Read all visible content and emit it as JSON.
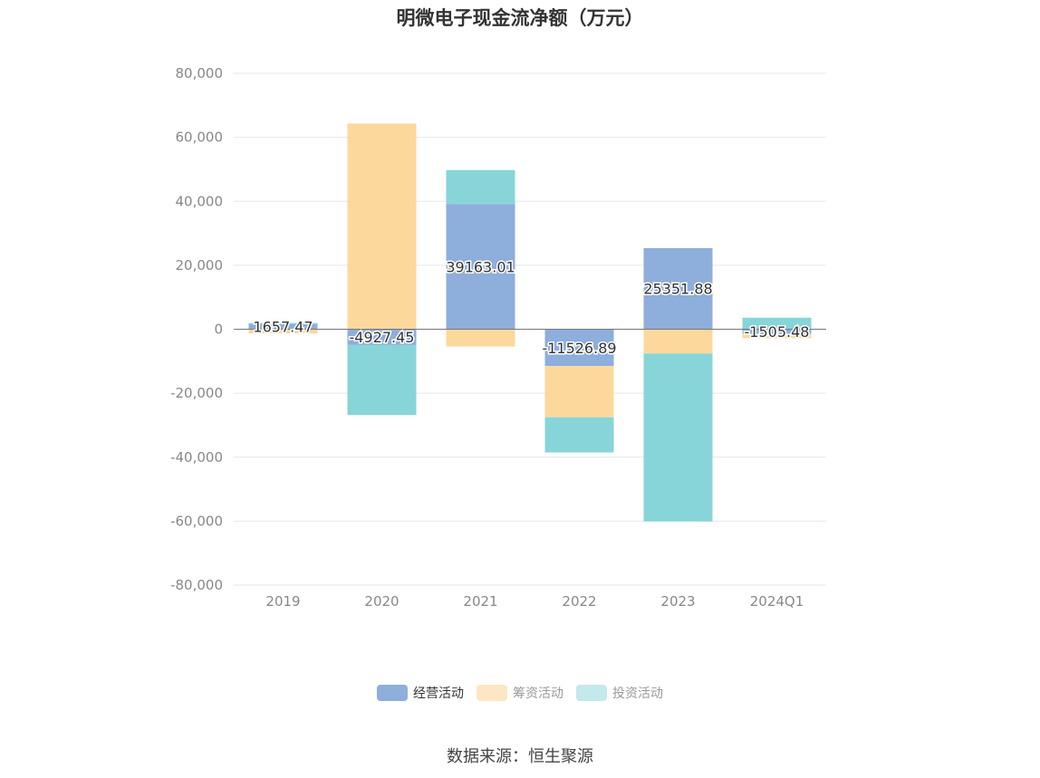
{
  "chart_data": {
    "type": "bar",
    "stacked": true,
    "title": "明微电子现金流净额（万元）",
    "categories": [
      "2019",
      "2020",
      "2021",
      "2022",
      "2023",
      "2024Q1"
    ],
    "series": [
      {
        "name": "经营活动",
        "color": "#8eaedb",
        "values": [
          1657.47,
          -4927.45,
          39163.01,
          -11526.89,
          25351.88,
          -1505.48
        ]
      },
      {
        "name": "筹资活动",
        "color": "#fdd89c",
        "values": [
          -1300,
          64300,
          -5400,
          -16000,
          -7600,
          -1300
        ]
      },
      {
        "name": "投资活动",
        "color": "#87d5d8",
        "values": [
          300,
          -21900,
          10600,
          -11000,
          -52500,
          3600
        ]
      }
    ],
    "data_labels": [
      "1657.47",
      "-4927.45",
      "39163.01",
      "-11526.89",
      "25351.88",
      "-1505.48"
    ],
    "ylim": [
      -80000,
      80000
    ],
    "yticks": [
      80000,
      60000,
      40000,
      20000,
      0,
      -20000,
      -40000,
      -60000,
      -80000
    ],
    "ytick_labels": [
      "80,000",
      "60,000",
      "40,000",
      "20,000",
      "0",
      "-20,000",
      "-40,000",
      "-60,000",
      "-80,000"
    ],
    "legend_position": "bottom-center",
    "grid": true
  },
  "legend": {
    "items": [
      {
        "label": "经营活动",
        "color": "#8eaedb",
        "active": true
      },
      {
        "label": "筹资活动",
        "color": "#fde6c4",
        "active": false
      },
      {
        "label": "投资活动",
        "color": "#c3e9ea",
        "active": false
      }
    ]
  },
  "source": "数据来源：恒生聚源"
}
